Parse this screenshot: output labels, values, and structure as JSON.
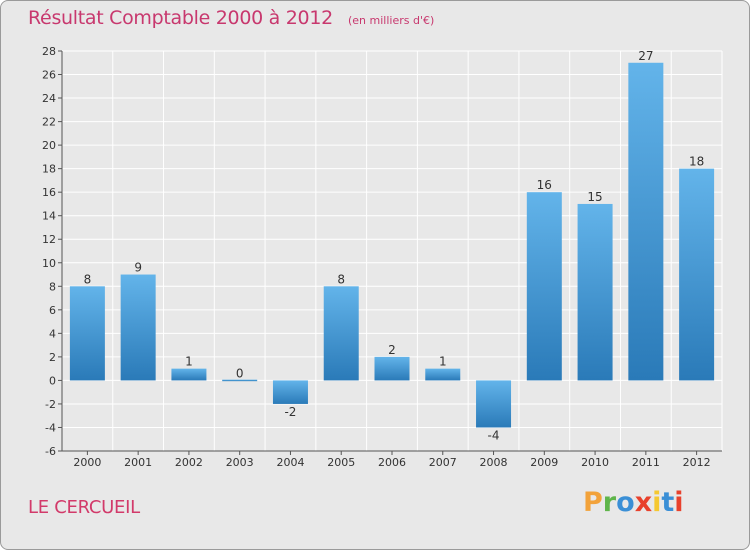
{
  "chart_data": {
    "type": "bar",
    "title": "Résultat Comptable 2000 à 2012",
    "subtitle": "(en milliers d'€)",
    "categories": [
      "2000",
      "2001",
      "2002",
      "2003",
      "2004",
      "2005",
      "2006",
      "2007",
      "2008",
      "2009",
      "2010",
      "2011",
      "2012"
    ],
    "values": [
      8,
      9,
      1,
      0,
      -2,
      8,
      2,
      1,
      -4,
      16,
      15,
      27,
      18
    ],
    "data_labels": [
      "8",
      "9",
      "1",
      "0",
      "-2",
      "8",
      "2",
      "1",
      "-4",
      "16",
      "15",
      "27",
      "18"
    ],
    "ylim": [
      -6,
      28
    ],
    "y_ticks": [
      -6,
      -4,
      -2,
      0,
      2,
      4,
      6,
      8,
      10,
      12,
      14,
      16,
      18,
      20,
      22,
      24,
      26,
      28
    ],
    "xlabel": "",
    "ylabel": "",
    "grid": true,
    "colors": {
      "bar_light": "#63b4ea",
      "bar_dark": "#2a7ab8",
      "grid": "#ffffff",
      "title": "#c8386e"
    }
  },
  "location": "LE CERCUEIL",
  "logo": {
    "letters": [
      "P",
      "r",
      "o",
      "x",
      "i",
      "t",
      "i"
    ],
    "colors": [
      "#f2a23a",
      "#5fb54a",
      "#3a8fd6",
      "#e8412c",
      "#f5c830",
      "#3a8fd6",
      "#e8412c"
    ]
  }
}
